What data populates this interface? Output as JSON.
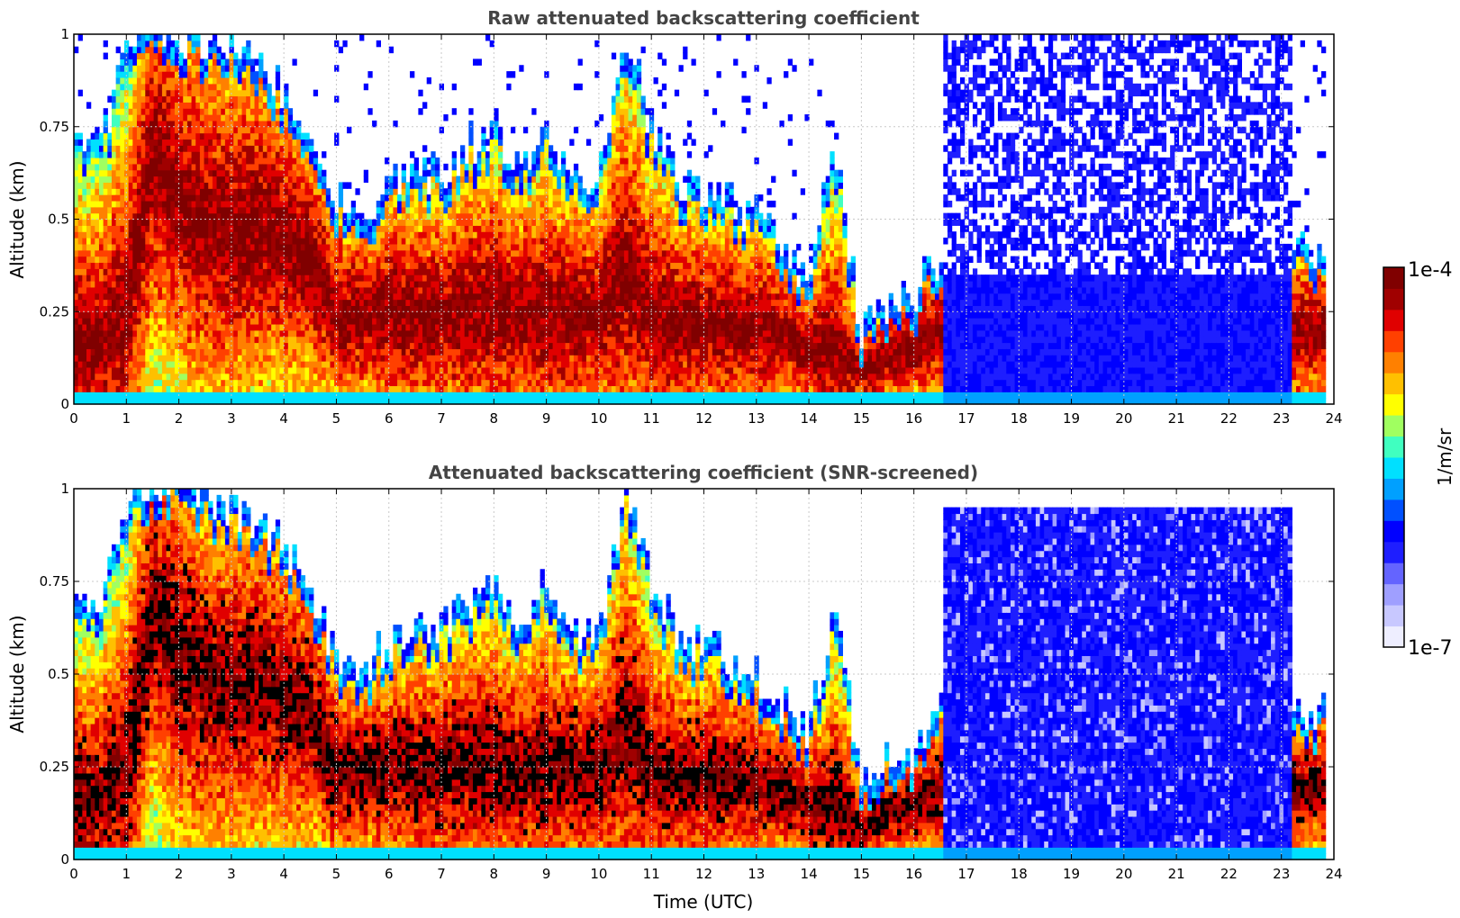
{
  "chart_data": [
    {
      "type": "heatmap",
      "title": "Raw attenuated backscattering coefficient",
      "ylabel": "Altitude (km)",
      "xlabel": "",
      "xlim": [
        0,
        24
      ],
      "ylim": [
        0,
        1
      ],
      "xticks": [
        "0",
        "1",
        "2",
        "3",
        "4",
        "5",
        "6",
        "7",
        "8",
        "9",
        "10",
        "11",
        "12",
        "13",
        "14",
        "15",
        "16",
        "17",
        "18",
        "19",
        "20",
        "21",
        "22",
        "23",
        "24"
      ],
      "yticks": [
        "0",
        "0.25",
        "0.5",
        "0.75",
        "1"
      ],
      "grid": true,
      "colorscale": "jet (log)",
      "column_profiles": [
        {
          "t": 0.0,
          "top": 0.72,
          "core": 0.2
        },
        {
          "t": 0.5,
          "top": 0.7,
          "core": 0.22
        },
        {
          "t": 1.0,
          "top": 0.95,
          "core": 0.3
        },
        {
          "t": 1.5,
          "top": 1.0,
          "core": 0.85
        },
        {
          "t": 2.0,
          "top": 1.0,
          "core": 0.7
        },
        {
          "t": 2.5,
          "top": 0.98,
          "core": 0.6
        },
        {
          "t": 3.0,
          "top": 0.95,
          "core": 0.58
        },
        {
          "t": 3.5,
          "top": 0.9,
          "core": 0.6
        },
        {
          "t": 4.0,
          "top": 0.85,
          "core": 0.55
        },
        {
          "t": 4.5,
          "top": 0.75,
          "core": 0.5
        },
        {
          "t": 5.0,
          "top": 0.55,
          "core": 0.3
        },
        {
          "t": 5.5,
          "top": 0.52,
          "core": 0.3
        },
        {
          "t": 6.0,
          "top": 0.58,
          "core": 0.32
        },
        {
          "t": 6.5,
          "top": 0.62,
          "core": 0.3
        },
        {
          "t": 7.0,
          "top": 0.62,
          "core": 0.3
        },
        {
          "t": 7.5,
          "top": 0.7,
          "core": 0.32
        },
        {
          "t": 8.0,
          "top": 0.72,
          "core": 0.32
        },
        {
          "t": 8.5,
          "top": 0.65,
          "core": 0.3
        },
        {
          "t": 9.0,
          "top": 0.75,
          "core": 0.32
        },
        {
          "t": 9.5,
          "top": 0.6,
          "core": 0.3
        },
        {
          "t": 10.0,
          "top": 0.62,
          "core": 0.3
        },
        {
          "t": 10.5,
          "top": 1.0,
          "core": 0.45
        },
        {
          "t": 11.0,
          "top": 0.75,
          "core": 0.3
        },
        {
          "t": 11.5,
          "top": 0.6,
          "core": 0.28
        },
        {
          "t": 12.0,
          "top": 0.58,
          "core": 0.28
        },
        {
          "t": 12.5,
          "top": 0.55,
          "core": 0.27
        },
        {
          "t": 13.0,
          "top": 0.5,
          "core": 0.26
        },
        {
          "t": 13.5,
          "top": 0.42,
          "core": 0.24
        },
        {
          "t": 14.0,
          "top": 0.35,
          "core": 0.18
        },
        {
          "t": 14.5,
          "top": 0.7,
          "core": 0.2
        },
        {
          "t": 15.0,
          "top": 0.18,
          "core": 0.1
        },
        {
          "t": 15.5,
          "top": 0.28,
          "core": 0.16
        },
        {
          "t": 16.0,
          "top": 0.3,
          "core": 0.18
        },
        {
          "t": 16.5,
          "top": 0.4,
          "core": 0.25
        },
        {
          "t": 17.0,
          "top": 1.0,
          "core": 0.0
        },
        {
          "t": 23.5,
          "top": 0.4,
          "core": 0.25
        }
      ]
    },
    {
      "type": "heatmap",
      "title": "Attenuated backscattering coefficient (SNR-screened)",
      "ylabel": "Altitude (km)",
      "xlabel": "Time (UTC)",
      "xlim": [
        0,
        24
      ],
      "ylim": [
        0,
        1
      ],
      "xticks": [
        "0",
        "1",
        "2",
        "3",
        "4",
        "5",
        "6",
        "7",
        "8",
        "9",
        "10",
        "11",
        "12",
        "13",
        "14",
        "15",
        "16",
        "17",
        "18",
        "19",
        "20",
        "21",
        "22",
        "23",
        "24"
      ],
      "yticks": [
        "0",
        "0.25",
        "0.5",
        "0.75",
        "1"
      ],
      "grid": true,
      "colorscale": "jet (log)"
    }
  ],
  "colorbar": {
    "label": "1/m/sr",
    "max_label": "1e-4",
    "min_label": "1e-7",
    "colors": [
      "#eeeeff",
      "#c8c8ff",
      "#9f9fff",
      "#6464ff",
      "#1e1eff",
      "#0000ff",
      "#0050ff",
      "#00a0ff",
      "#00e0ff",
      "#40ffc0",
      "#a0ff60",
      "#ffff00",
      "#ffc000",
      "#ff8000",
      "#ff4000",
      "#e00000",
      "#a00000",
      "#800000"
    ]
  }
}
